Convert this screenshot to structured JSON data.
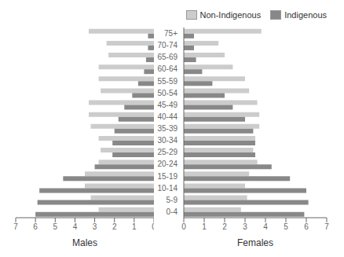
{
  "chart_data": [
    {
      "type": "bar",
      "orientation": "horizontal",
      "xlabel": "Males",
      "categories": [
        "0-4",
        "5-9",
        "10-14",
        "15-19",
        "20-24",
        "25-29",
        "30-34",
        "35-39",
        "40-44",
        "45-49",
        "50-54",
        "55-59",
        "60-64",
        "65-69",
        "70-74",
        "75+"
      ],
      "series": [
        {
          "name": "Non-Indigenous",
          "color": "#cccccc",
          "values": [
            2.8,
            3.2,
            3.5,
            3.5,
            2.8,
            2.7,
            2.8,
            3.2,
            3.3,
            3.3,
            2.7,
            2.8,
            2.8,
            2.3,
            2.4,
            3.3
          ]
        },
        {
          "name": "Indigenous",
          "color": "#888888",
          "values": [
            6.0,
            5.9,
            5.8,
            4.6,
            3.0,
            2.1,
            2.1,
            2.0,
            1.8,
            1.5,
            1.1,
            0.8,
            0.5,
            0.4,
            0.3,
            0.3
          ]
        }
      ],
      "xlim": [
        7,
        0
      ],
      "xticks": [
        7,
        6,
        5,
        4,
        3,
        2,
        1,
        0
      ],
      "grid": false,
      "tick_labels": "x"
    },
    {
      "type": "bar",
      "orientation": "horizontal",
      "xlabel": "Females",
      "categories": [
        "0-4",
        "5-9",
        "10-14",
        "15-19",
        "20-24",
        "25-29",
        "30-34",
        "35-39",
        "40-44",
        "45-49",
        "50-54",
        "55-59",
        "60-64",
        "65-69",
        "70-74",
        "75+"
      ],
      "series": [
        {
          "name": "Non-Indigenous",
          "color": "#cccccc",
          "values": [
            2.8,
            3.1,
            3.0,
            3.2,
            3.6,
            3.4,
            3.5,
            3.7,
            3.7,
            3.6,
            3.2,
            3.0,
            2.4,
            2.0,
            1.7,
            3.8
          ]
        },
        {
          "name": "Indigenous",
          "color": "#888888",
          "values": [
            5.9,
            6.1,
            6.0,
            5.2,
            4.3,
            3.5,
            3.5,
            3.4,
            3.0,
            2.4,
            2.0,
            1.4,
            0.9,
            0.6,
            0.5,
            0.5
          ]
        }
      ],
      "xlim": [
        0,
        7
      ],
      "xticks": [
        0,
        1,
        2,
        3,
        4,
        5,
        6,
        7
      ],
      "grid": false,
      "legend": "upper right"
    }
  ]
}
